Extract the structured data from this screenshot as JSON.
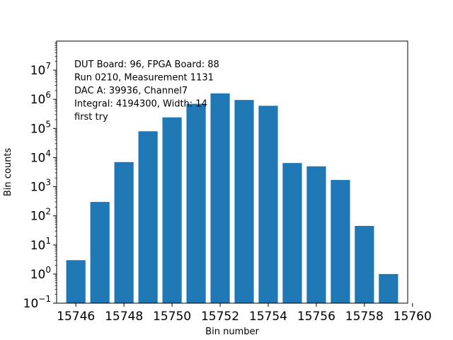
{
  "chart_data": {
    "type": "bar",
    "xlabel": "Bin number",
    "ylabel": "Bin counts",
    "yscale": "log",
    "xlim": [
      15745.2,
      15759.8
    ],
    "ylim_exponents": [
      -1,
      8
    ],
    "x": [
      15746,
      15747,
      15748,
      15749,
      15750,
      15751,
      15752,
      15753,
      15754,
      15755,
      15756,
      15757,
      15758,
      15759
    ],
    "values": [
      3,
      300,
      7000,
      80000,
      240000,
      700000,
      1600000,
      950000,
      600000,
      6500,
      5000,
      1700,
      45,
      1
    ],
    "xticks": [
      "15746",
      "15748",
      "15750",
      "15752",
      "15754",
      "15756",
      "15758",
      "15760"
    ],
    "ytick_base": "10",
    "yticks_exponents": [
      "−1",
      "0",
      "1",
      "2",
      "3",
      "4",
      "5",
      "6",
      "7"
    ],
    "annotations": [
      "DUT Board: 96, FPGA Board: 88",
      "Run 0210, Measurement 1131",
      "DAC A: 39936, Channel7",
      "Integral: 4194300, Width: 14",
      "first try"
    ],
    "bar_color": "#1f77b4",
    "grid": false
  }
}
